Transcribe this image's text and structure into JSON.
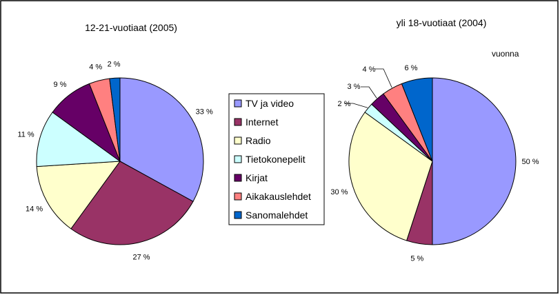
{
  "colors": {
    "TV ja video": "#9999ff",
    "Internet": "#993366",
    "Radio": "#ffffcc",
    "Tietokonepelit": "#ccffff",
    "Kirjat": "#660066",
    "Aikakauslehdet": "#ff8080",
    "Sanomalehdet": "#0066cc"
  },
  "chart_data": [
    {
      "type": "pie",
      "title": "12-21-vuotiaat  (2005)",
      "categories": [
        "TV ja video",
        "Internet",
        "Radio",
        "Tietokonepelit",
        "Kirjat",
        "Aikakauslehdet",
        "Sanomalehdet"
      ],
      "values": [
        33,
        27,
        14,
        11,
        9,
        4,
        2
      ],
      "labels": [
        "33 %",
        "27 %",
        "14 %",
        "11 %",
        "9 %",
        "4 %",
        "2 %"
      ],
      "legend_position": "center"
    },
    {
      "type": "pie",
      "title": "yli 18-vuotiaat  (2004)",
      "subtitle": "vuonna",
      "categories": [
        "TV ja video",
        "Internet",
        "Radio",
        "Tietokonepelit",
        "Kirjat",
        "Aikakauslehdet",
        "Sanomalehdet"
      ],
      "values": [
        50,
        5,
        30,
        2,
        3,
        4,
        6
      ],
      "labels": [
        "50 %",
        "5 %",
        "30 %",
        "2 %",
        "3 %",
        "4 %",
        "6 %"
      ],
      "legend_position": "center"
    }
  ]
}
